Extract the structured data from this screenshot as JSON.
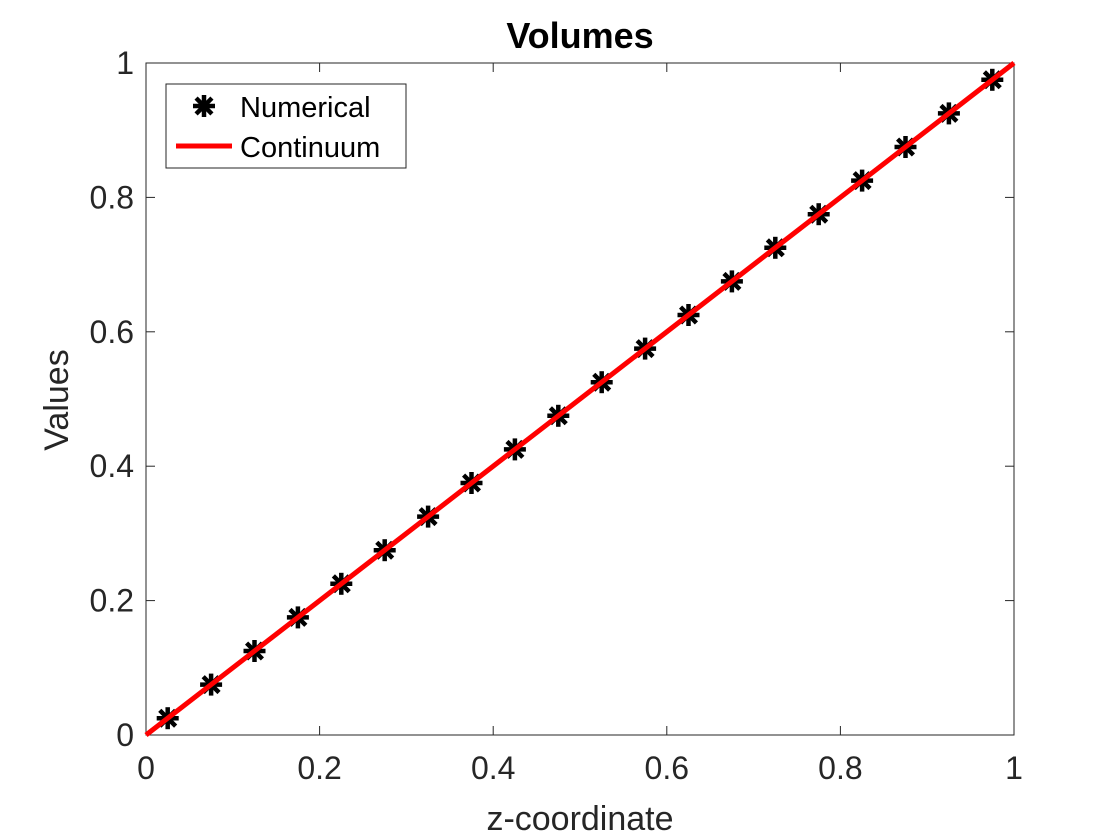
{
  "chart_data": {
    "type": "line",
    "title": "Volumes",
    "xlabel": "z-coordinate",
    "ylabel": "Values",
    "xlim": [
      0,
      1
    ],
    "ylim": [
      0,
      1
    ],
    "xticks": [
      "0",
      "0.2",
      "0.4",
      "0.6",
      "0.8",
      "1"
    ],
    "yticks": [
      "0",
      "0.2",
      "0.4",
      "0.6",
      "0.8",
      "1"
    ],
    "grid": false,
    "legend_position": "top-left",
    "series": [
      {
        "name": "Numerical",
        "style": "markers",
        "marker": "asterisk",
        "color": "#000000",
        "x": [
          0.025,
          0.075,
          0.125,
          0.175,
          0.225,
          0.275,
          0.325,
          0.375,
          0.425,
          0.475,
          0.525,
          0.575,
          0.625,
          0.675,
          0.725,
          0.775,
          0.825,
          0.875,
          0.925,
          0.975
        ],
        "y": [
          0.025,
          0.075,
          0.125,
          0.175,
          0.225,
          0.275,
          0.325,
          0.375,
          0.425,
          0.475,
          0.525,
          0.575,
          0.625,
          0.675,
          0.725,
          0.775,
          0.825,
          0.875,
          0.925,
          0.975
        ]
      },
      {
        "name": "Continuum",
        "style": "line",
        "color": "#ff0000",
        "x": [
          0,
          1
        ],
        "y": [
          0,
          1
        ]
      }
    ]
  }
}
